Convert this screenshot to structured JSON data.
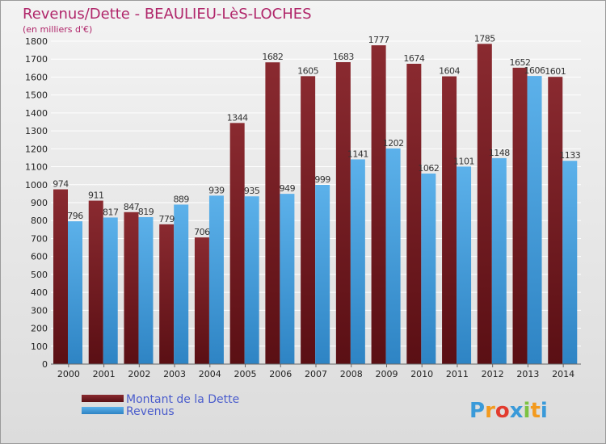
{
  "chart_data": {
    "type": "bar",
    "title": "Revenus/Dette - BEAULIEU-LèS-LOCHES",
    "subtitle": "(en milliers d'€)",
    "categories": [
      "2000",
      "2001",
      "2002",
      "2003",
      "2004",
      "2005",
      "2006",
      "2007",
      "2008",
      "2009",
      "2010",
      "2011",
      "2012",
      "2013",
      "2014"
    ],
    "series": [
      {
        "name": "Montant de la Dette",
        "values": [
          974,
          911,
          847,
          779,
          706,
          1344,
          1682,
          1605,
          1683,
          1777,
          1674,
          1604,
          1785,
          1652,
          1601
        ]
      },
      {
        "name": "Revenus",
        "values": [
          796,
          817,
          819,
          889,
          939,
          935,
          949,
          999,
          1141,
          1202,
          1062,
          1101,
          1148,
          1606,
          1133
        ]
      }
    ],
    "ylim": [
      0,
      1800
    ],
    "yticks": [
      0,
      100,
      200,
      300,
      400,
      500,
      600,
      700,
      800,
      900,
      1000,
      1100,
      1200,
      1300,
      1400,
      1500,
      1600,
      1700,
      1800
    ],
    "grid": true,
    "legend_position": "bottom-left",
    "colors": {
      "dette": "#7a1f25",
      "revenus": "#4aa3e0",
      "title": "#b0266a",
      "legend_text": "#4a5ccc"
    }
  },
  "logo": {
    "text": "Proxiti",
    "letters": [
      "P",
      "r",
      "o",
      "x",
      "i",
      "t",
      "i"
    ],
    "colors": [
      "#3a9ad9",
      "#f39a1e",
      "#e23b2e",
      "#3a9ad9",
      "#7cc242",
      "#f39a1e",
      "#3a9ad9"
    ]
  }
}
